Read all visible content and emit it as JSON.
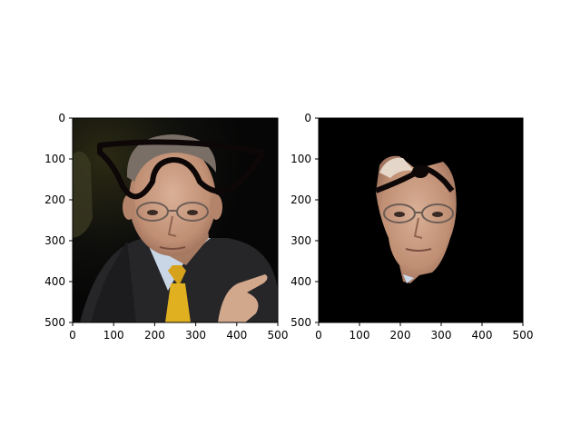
{
  "figure": {
    "background": "#ffffff"
  },
  "chart_data": [
    {
      "type": "image",
      "panel": "left",
      "description_visible": "photo of man in suit with drawn glasses overlay",
      "xlim": [
        0,
        500
      ],
      "ylim": [
        500,
        0
      ],
      "xticks": [
        0,
        100,
        200,
        300,
        400,
        500
      ],
      "yticks": [
        0,
        100,
        200,
        300,
        400,
        500
      ],
      "xtick_labels": [
        "0",
        "100",
        "200",
        "300",
        "400",
        "500"
      ],
      "ytick_labels": [
        "0",
        "100",
        "200",
        "300",
        "400",
        "500"
      ],
      "title": "",
      "xlabel": "",
      "ylabel": ""
    },
    {
      "type": "image",
      "panel": "right",
      "description_visible": "masked face region on black background with drawn glasses overlay",
      "xlim": [
        0,
        500
      ],
      "ylim": [
        500,
        0
      ],
      "xticks": [
        0,
        100,
        200,
        300,
        400,
        500
      ],
      "yticks": [
        0,
        100,
        200,
        300,
        400,
        500
      ],
      "xtick_labels": [
        "0",
        "100",
        "200",
        "300",
        "400",
        "500"
      ],
      "ytick_labels": [
        "0",
        "100",
        "200",
        "300",
        "400",
        "500"
      ],
      "title": "",
      "xlabel": "",
      "ylabel": ""
    }
  ],
  "colors": {
    "left_background": "#0b0b0b",
    "right_background": "#000000",
    "skin": "#c79a7e",
    "shirt": "#c9d6e6",
    "suit": "#2a2a2c",
    "tie": "#d6a21c",
    "hair": "#7a6f66",
    "glasses": "#0d0707"
  }
}
